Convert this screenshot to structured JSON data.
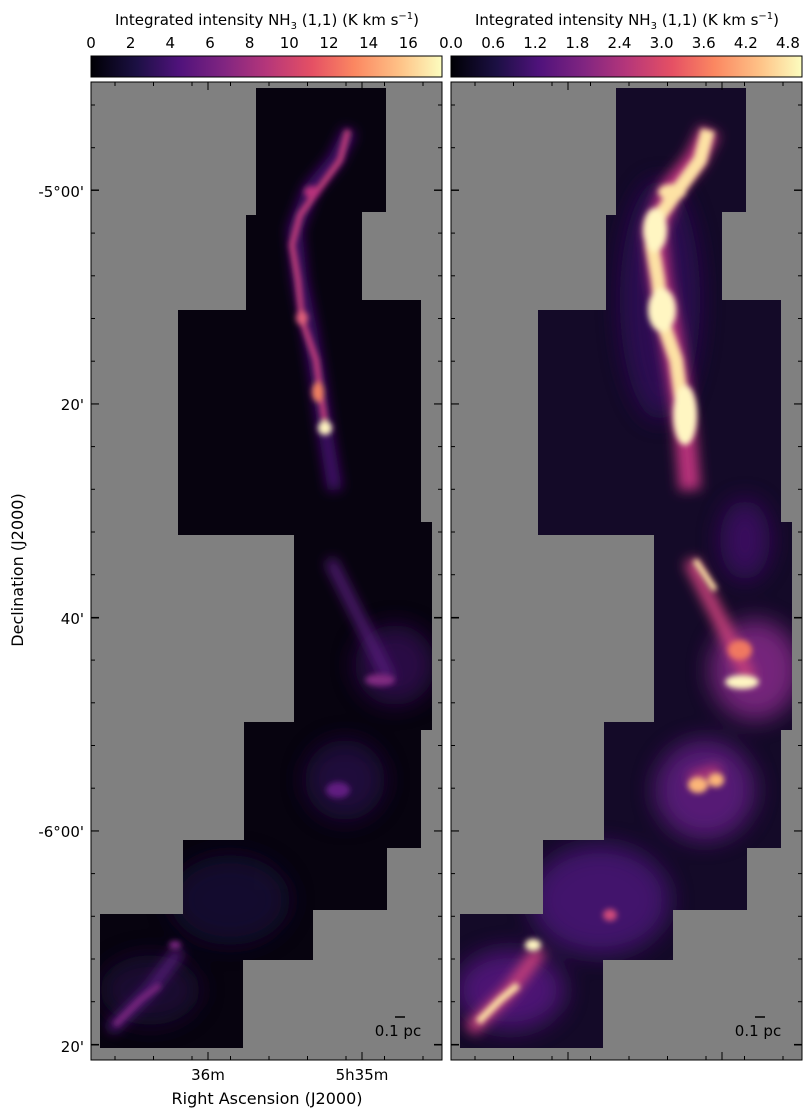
{
  "chart_data": [
    {
      "type": "heatmap",
      "colormap": "magma",
      "background_color": "#808080",
      "colorbar": {
        "title": "Integrated intensity NH",
        "title_sub": "3",
        "title_rest": " (1,1) (K km s",
        "title_sup": "−1",
        "title_end": ")",
        "vmin": 0,
        "vmax": 17.7,
        "ticks": [
          0,
          2,
          4,
          6,
          8,
          10,
          12,
          14,
          16
        ],
        "tick_labels": [
          "0",
          "2",
          "4",
          "6",
          "8",
          "10",
          "12",
          "14",
          "16"
        ]
      },
      "ylabel": "Declination (J2000)",
      "xlabel": "Right Ascension (J2000)",
      "yticks": [
        "-5°00'",
        "20'",
        "40'",
        "-6°00'",
        "20'"
      ],
      "xticks": [
        "36m",
        "5h35m"
      ],
      "scalebar_label": "0.1 pc"
    },
    {
      "type": "heatmap",
      "colormap": "magma",
      "background_color": "#808080",
      "colorbar": {
        "title": "Integrated intensity NH",
        "title_sub": "3",
        "title_rest": " (1,1) (K km s",
        "title_sup": "−1",
        "title_end": ")",
        "vmin": 0,
        "vmax": 5.0,
        "ticks": [
          0.0,
          0.6,
          1.2,
          1.8,
          2.4,
          3.0,
          3.6,
          4.2,
          4.8
        ],
        "tick_labels": [
          "0.0",
          "0.6",
          "1.2",
          "1.8",
          "2.4",
          "3.0",
          "3.6",
          "4.2",
          "4.8"
        ]
      },
      "scalebar_label": "0.1 pc"
    }
  ]
}
